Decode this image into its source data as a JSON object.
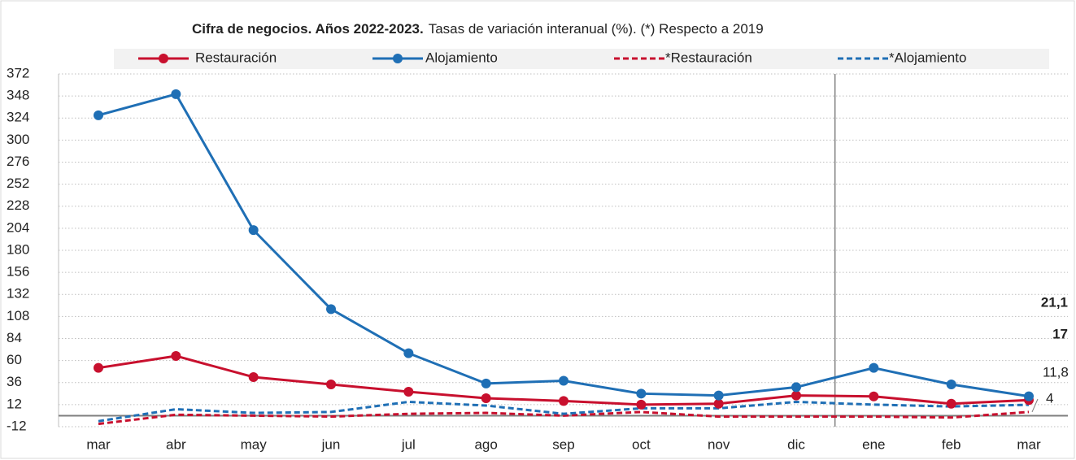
{
  "chart_data": {
    "type": "line",
    "title": "Cifra de negocios. Años 2022-2023.",
    "subtitle": "Tasas de variación interanual (%). (*) Respecto a 2019",
    "categories": [
      "mar",
      "abr",
      "may",
      "jun",
      "jul",
      "ago",
      "sep",
      "oct",
      "nov",
      "dic",
      "ene",
      "feb",
      "mar"
    ],
    "series": [
      {
        "name": "Restauración",
        "color": "#c8102e",
        "dashed": false,
        "markers": true,
        "values": [
          52,
          65,
          42,
          34,
          26,
          19,
          16,
          12,
          13,
          22,
          21,
          13,
          17
        ],
        "value_labels": [
          null,
          null,
          null,
          null,
          null,
          null,
          null,
          null,
          null,
          null,
          null,
          null,
          "17"
        ]
      },
      {
        "name": "Alojamiento",
        "color": "#1f6fb5",
        "dashed": false,
        "markers": true,
        "values": [
          327,
          350,
          202,
          116,
          68,
          35,
          38,
          24,
          22,
          31,
          52,
          34,
          21.1
        ],
        "value_labels": [
          null,
          null,
          null,
          null,
          null,
          null,
          null,
          null,
          null,
          null,
          null,
          null,
          "21,1"
        ]
      },
      {
        "name": "*Restauración",
        "color": "#c8102e",
        "dashed": true,
        "markers": false,
        "values": [
          -9,
          1,
          0,
          -1,
          2,
          3,
          0,
          4,
          -1,
          -1,
          -1,
          -2,
          4
        ],
        "value_labels": [
          null,
          null,
          null,
          null,
          null,
          null,
          null,
          null,
          null,
          null,
          null,
          null,
          "4"
        ]
      },
      {
        "name": "*Alojamiento",
        "color": "#1f6fb5",
        "dashed": true,
        "markers": false,
        "values": [
          -6,
          7,
          3,
          4,
          15,
          11,
          2,
          8,
          8,
          15,
          12,
          10,
          11.8
        ],
        "value_labels": [
          null,
          null,
          null,
          null,
          null,
          null,
          null,
          null,
          null,
          null,
          null,
          null,
          "11,8"
        ]
      }
    ],
    "ylim": [
      -12,
      372
    ],
    "yticks": [
      -12,
      12,
      36,
      60,
      84,
      108,
      132,
      156,
      180,
      204,
      228,
      252,
      276,
      300,
      324,
      348,
      372
    ],
    "grid": true,
    "legend": "top"
  }
}
